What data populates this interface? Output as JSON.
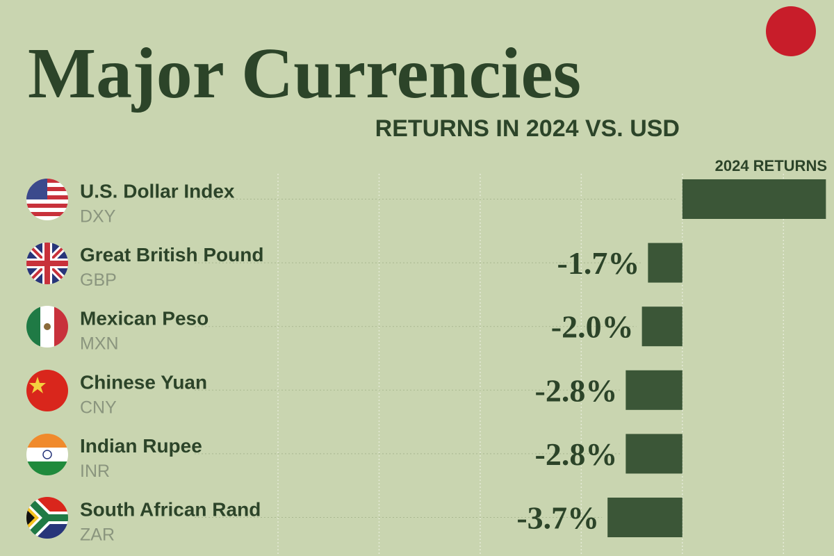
{
  "chart_data": {
    "type": "hbar",
    "title": "Major Currencies",
    "subtitle": "RETURNS IN 2024 VS. USD",
    "column_label": "2024 RETURNS",
    "categories": [
      "U.S. Dollar Index",
      "Great British Pound",
      "Mexican Peso",
      "Chinese Yuan",
      "Indian Rupee",
      "South African Rand"
    ],
    "codes": [
      "DXY",
      "GBP",
      "MXN",
      "CNY",
      "INR",
      "ZAR"
    ],
    "values": [
      7.1,
      -1.7,
      -2.0,
      -2.8,
      -2.8,
      -3.7
    ],
    "value_labels": [
      null,
      "-1.7%",
      "-2.0%",
      "-2.8%",
      "-2.8%",
      "-3.7%"
    ],
    "color": "#3b5637",
    "xlim": [
      -20,
      7.5
    ],
    "xticks": [
      -20,
      -15,
      -10,
      -5,
      0,
      5
    ],
    "grid": true
  }
}
